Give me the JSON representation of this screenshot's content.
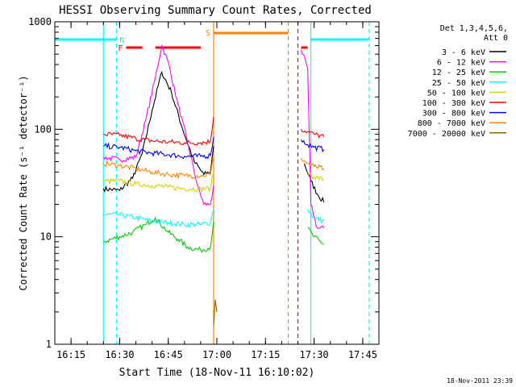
{
  "chart_data": {
    "type": "line",
    "title": "HESSI Observing Summary Count Rates, Corrected",
    "xlabel": "Start Time (18-Nov-11 16:10:02)",
    "ylabel": "Corrected Count Rate (s⁻¹ detector⁻¹)",
    "timestamp": "18-Nov-2011 23:39",
    "x_unit": "minutes of 18-Nov-2011 (UT)",
    "xlim": [
      "16:10",
      "17:50"
    ],
    "ylim": [
      1,
      1000
    ],
    "y_scale": "log",
    "grid": false,
    "legend_position": "right",
    "x_ticks": [
      "16:15",
      "16:30",
      "16:45",
      "17:00",
      "17:15",
      "17:30",
      "17:45"
    ],
    "y_ticks": [
      "1",
      "10",
      "100",
      "1000"
    ],
    "legend_header": [
      "Det 1,3,4,5,6,",
      "Att 0"
    ],
    "series": [
      {
        "name": "3 - 6 keV",
        "color": "#000000",
        "points": [
          [
            "16:25",
            28
          ],
          [
            "16:30",
            27
          ],
          [
            "16:34",
            35
          ],
          [
            "16:37",
            60
          ],
          [
            "16:40",
            150
          ],
          [
            "16:43",
            340
          ],
          [
            "16:46",
            220
          ],
          [
            "16:49",
            110
          ],
          [
            "16:53",
            50
          ],
          [
            "16:56",
            38
          ],
          [
            "16:58",
            40
          ],
          [
            "16:59",
            70
          ],
          [
            "17:27",
            48
          ],
          [
            "17:29",
            33
          ],
          [
            "17:31",
            25
          ],
          [
            "17:33",
            21
          ]
        ]
      },
      {
        "name": "6 - 12 keV",
        "color": "#ff00ff",
        "points": [
          [
            "16:25",
            55
          ],
          [
            "16:30",
            52
          ],
          [
            "16:35",
            55
          ],
          [
            "16:38",
            120
          ],
          [
            "16:41",
            300
          ],
          [
            "16:43",
            600
          ],
          [
            "16:45",
            420
          ],
          [
            "16:48",
            170
          ],
          [
            "16:51",
            75
          ],
          [
            "16:54",
            30
          ],
          [
            "16:56",
            20
          ],
          [
            "16:58",
            20
          ],
          [
            "16:59",
            30
          ],
          [
            "17:26",
            550
          ],
          [
            "17:28",
            370
          ],
          [
            "17:29",
            20
          ],
          [
            "17:31",
            12
          ],
          [
            "17:33",
            12
          ]
        ]
      },
      {
        "name": "12 - 25 keV",
        "color": "#00c800",
        "points": [
          [
            "16:25",
            9
          ],
          [
            "16:30",
            10
          ],
          [
            "16:34",
            11
          ],
          [
            "16:38",
            13
          ],
          [
            "16:41",
            15
          ],
          [
            "16:45",
            11
          ],
          [
            "16:48",
            9.5
          ],
          [
            "16:51",
            8
          ],
          [
            "16:55",
            7.5
          ],
          [
            "16:58",
            8
          ],
          [
            "16:59",
            14
          ],
          [
            "17:28",
            12
          ],
          [
            "17:30",
            10
          ],
          [
            "17:33",
            8.5
          ]
        ]
      },
      {
        "name": "25 - 50 keV",
        "color": "#00ffff",
        "points": [
          [
            "16:25",
            16
          ],
          [
            "16:30",
            16
          ],
          [
            "16:35",
            15
          ],
          [
            "16:40",
            14
          ],
          [
            "16:45",
            13.5
          ],
          [
            "16:50",
            13
          ],
          [
            "16:55",
            13
          ],
          [
            "16:58",
            13.5
          ],
          [
            "16:59",
            18
          ],
          [
            "17:28",
            18
          ],
          [
            "17:30",
            15
          ],
          [
            "17:33",
            14
          ]
        ]
      },
      {
        "name": "50 - 100 keV",
        "color": "#d2d200",
        "points": [
          [
            "16:25",
            33
          ],
          [
            "16:30",
            33
          ],
          [
            "16:35",
            31
          ],
          [
            "16:40",
            30
          ],
          [
            "16:45",
            29
          ],
          [
            "16:50",
            28
          ],
          [
            "16:55",
            28
          ],
          [
            "16:58",
            28
          ],
          [
            "16:59",
            40
          ],
          [
            "17:28",
            40
          ],
          [
            "17:30",
            36
          ],
          [
            "17:33",
            34
          ]
        ]
      },
      {
        "name": "100 - 300 keV",
        "color": "#ff0000",
        "points": [
          [
            "16:25",
            90
          ],
          [
            "16:30",
            88
          ],
          [
            "16:35",
            82
          ],
          [
            "16:40",
            78
          ],
          [
            "16:45",
            76
          ],
          [
            "16:50",
            75
          ],
          [
            "16:55",
            75
          ],
          [
            "16:58",
            77
          ],
          [
            "16:59",
            130
          ],
          [
            "17:26",
            100
          ],
          [
            "17:28",
            95
          ],
          [
            "17:30",
            90
          ],
          [
            "17:33",
            85
          ]
        ]
      },
      {
        "name": "300 - 800 keV",
        "color": "#0000ff",
        "points": [
          [
            "16:25",
            70
          ],
          [
            "16:30",
            68
          ],
          [
            "16:35",
            63
          ],
          [
            "16:40",
            60
          ],
          [
            "16:45",
            58
          ],
          [
            "16:50",
            56
          ],
          [
            "16:55",
            56
          ],
          [
            "16:58",
            57
          ],
          [
            "16:59",
            85
          ],
          [
            "17:26",
            80
          ],
          [
            "17:28",
            72
          ],
          [
            "17:30",
            68
          ],
          [
            "17:33",
            65
          ]
        ]
      },
      {
        "name": "800 - 7000 keV",
        "color": "#ff8200",
        "points": [
          [
            "16:25",
            48
          ],
          [
            "16:30",
            46
          ],
          [
            "16:35",
            43
          ],
          [
            "16:40",
            40
          ],
          [
            "16:45",
            38
          ],
          [
            "16:50",
            37
          ],
          [
            "16:55",
            37
          ],
          [
            "16:58",
            38
          ],
          [
            "16:59",
            55
          ],
          [
            "17:26",
            54
          ],
          [
            "17:28",
            48
          ],
          [
            "17:30",
            45
          ],
          [
            "17:33",
            43
          ]
        ]
      },
      {
        "name": "7000 - 20000 keV",
        "color": "#8c6400",
        "points": [
          [
            "16:59",
            1.5
          ],
          [
            "16:59.5",
            2.6
          ],
          [
            "17:00",
            2
          ]
        ]
      }
    ],
    "flags": [
      {
        "label": "F",
        "color": "#ff0000",
        "segments": [
          [
            "16:32",
            "16:37"
          ],
          [
            "16:41",
            "16:55"
          ],
          [
            "17:26",
            "17:28"
          ]
        ]
      },
      {
        "label": "N",
        "color": "#00ffff",
        "segments": [
          [
            "16:10",
            "16:29"
          ],
          [
            "17:29",
            "17:47"
          ]
        ]
      },
      {
        "label": "S",
        "color": "#ff8200",
        "segments": [
          [
            "16:59",
            "17:22"
          ]
        ]
      }
    ],
    "markers": [
      {
        "time": "16:25",
        "color": "#00ffff",
        "style": "solid"
      },
      {
        "time": "16:29",
        "color": "#00ffff",
        "style": "dashed"
      },
      {
        "time": "16:59",
        "color": "#ff8200",
        "style": "solid"
      },
      {
        "time": "17:22",
        "color": "#ff8200",
        "style": "dashed"
      },
      {
        "time": "17:25",
        "color": "#ff0000",
        "style": "dashed"
      },
      {
        "time": "17:29",
        "color": "#00ffff",
        "style": "solid"
      },
      {
        "time": "17:47",
        "color": "#00ffff",
        "style": "dashed"
      }
    ]
  }
}
